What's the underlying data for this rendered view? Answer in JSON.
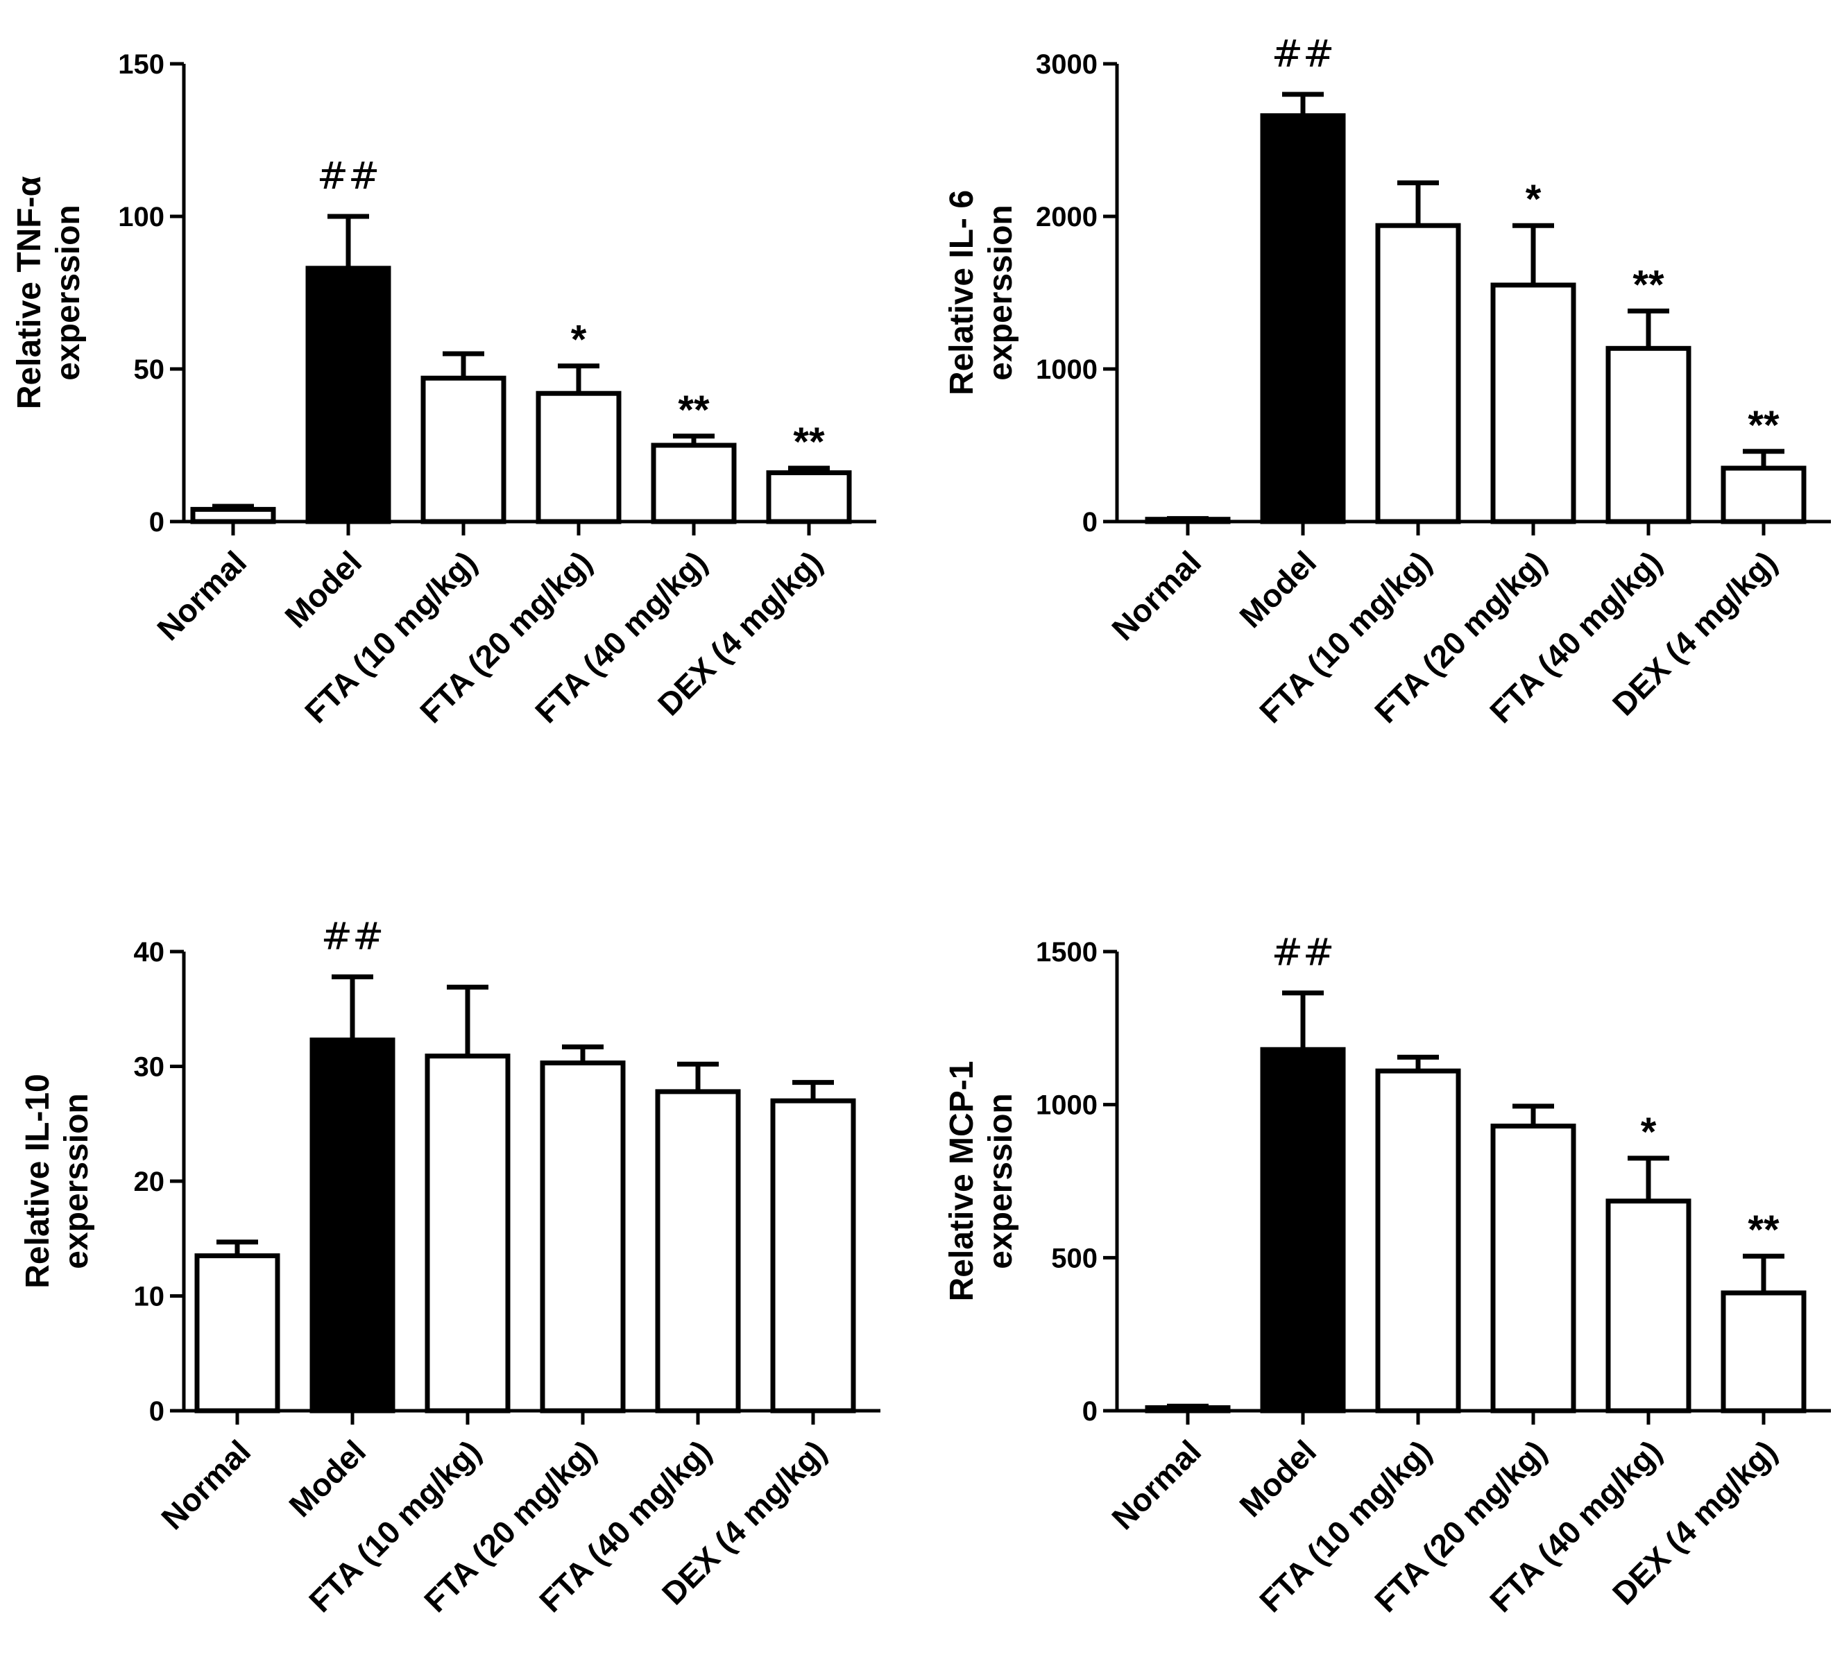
{
  "chart_data": [
    {
      "type": "bar",
      "id": "tnf",
      "ylabel_lines": [
        "Relative TNF-α",
        "experssion"
      ],
      "categories": [
        "Normal",
        "Model",
        "FTA (10 mg/kg)",
        "FTA (20 mg/kg)",
        "FTA (40 mg/kg)",
        "DEX (4 mg/kg)"
      ],
      "values": [
        4,
        83,
        47,
        42,
        25,
        16
      ],
      "errors": [
        1,
        17,
        8,
        9,
        3,
        1.5
      ],
      "fills": [
        "white",
        "black",
        "white",
        "white",
        "white",
        "white"
      ],
      "annotations": [
        "",
        "##",
        "",
        "*",
        "**",
        "**"
      ],
      "ylim": [
        0,
        150
      ],
      "yticks": [
        0,
        50,
        100,
        150
      ],
      "ytick_labels": [
        "0",
        "50",
        "100",
        "150"
      ]
    },
    {
      "type": "bar",
      "id": "il6",
      "ylabel_lines": [
        "Relative IL- 6",
        "experssion"
      ],
      "categories": [
        "Normal",
        "Model",
        "FTA (10 mg/kg)",
        "FTA (20 mg/kg)",
        "FTA (40 mg/kg)",
        "DEX (4 mg/kg)"
      ],
      "values": [
        15,
        2660,
        1940,
        1550,
        1135,
        350
      ],
      "errors": [
        5,
        140,
        280,
        390,
        245,
        110
      ],
      "fills": [
        "white",
        "black",
        "white",
        "white",
        "white",
        "white"
      ],
      "annotations": [
        "",
        "##",
        "",
        "*",
        "**",
        "**"
      ],
      "ylim": [
        0,
        3000
      ],
      "yticks": [
        0,
        1000,
        2000,
        3000
      ],
      "ytick_labels": [
        "0",
        "1000",
        "2000",
        "3000"
      ]
    },
    {
      "type": "bar",
      "id": "il10",
      "ylabel_lines": [
        "Relative IL-10",
        "experssion"
      ],
      "categories": [
        "Normal",
        "Model",
        "FTA (10 mg/kg)",
        "FTA (20 mg/kg)",
        "FTA (40 mg/kg)",
        "DEX (4 mg/kg)"
      ],
      "values": [
        13.5,
        32.3,
        30.9,
        30.3,
        27.8,
        27.0
      ],
      "errors": [
        1.2,
        5.5,
        6.0,
        1.4,
        2.4,
        1.6
      ],
      "fills": [
        "white",
        "black",
        "white",
        "white",
        "white",
        "white"
      ],
      "annotations": [
        "",
        "##",
        "",
        "",
        "",
        ""
      ],
      "ylim": [
        0,
        40
      ],
      "yticks": [
        0,
        10,
        20,
        30,
        40
      ],
      "ytick_labels": [
        "0",
        "10",
        "20",
        "30",
        "40"
      ]
    },
    {
      "type": "bar",
      "id": "mcp1",
      "ylabel_lines": [
        "Relative MCP-1",
        "experssion"
      ],
      "categories": [
        "Normal",
        "Model",
        "FTA (10 mg/kg)",
        "FTA (20 mg/kg)",
        "FTA (40 mg/kg)",
        "DEX (4 mg/kg)"
      ],
      "values": [
        10,
        1180,
        1110,
        930,
        685,
        385
      ],
      "errors": [
        5,
        185,
        45,
        65,
        140,
        120
      ],
      "fills": [
        "white",
        "black",
        "white",
        "white",
        "white",
        "white"
      ],
      "annotations": [
        "",
        "##",
        "",
        "",
        "*",
        "**"
      ],
      "ylim": [
        0,
        1500
      ],
      "yticks": [
        0,
        500,
        1000,
        1500
      ],
      "ytick_labels": [
        "0",
        "500",
        "1000",
        "1500"
      ]
    }
  ]
}
